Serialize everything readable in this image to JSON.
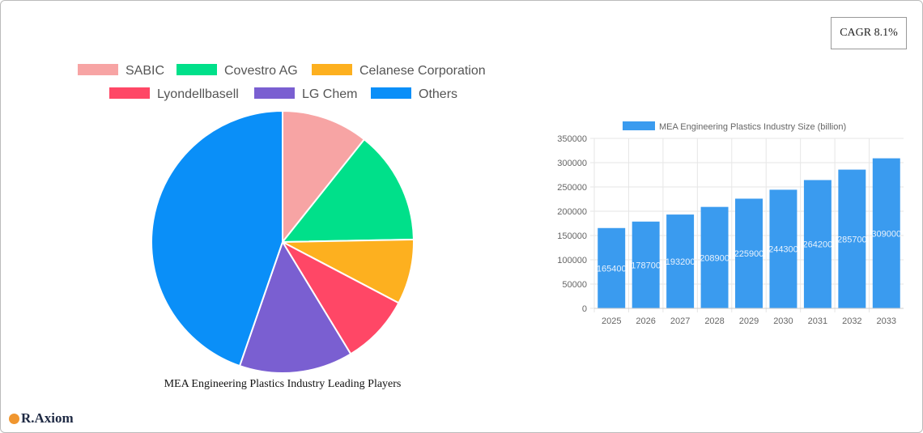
{
  "cagr_label": "CAGR 8.1%",
  "brand": "R.Axiom",
  "chart_data": [
    {
      "type": "pie",
      "title": "MEA Engineering Plastics Industry Leading Players",
      "legend_position": "top",
      "categories": [
        "SABIC",
        "Covestro AG",
        "Celanese Corporation",
        "Lyondellbasell",
        "LG Chem",
        "Others"
      ],
      "values": [
        10.7,
        14.0,
        8.0,
        8.6,
        14.0,
        44.7
      ],
      "colors": [
        "#f7a4a4",
        "#00e08a",
        "#fdb01f",
        "#ff4766",
        "#7a5fd1",
        "#0a8ff8"
      ]
    },
    {
      "type": "bar",
      "legend_position": "top",
      "series": [
        {
          "name": "MEA Engineering Plastics Industry Size (billion)",
          "color": "#3a9bef",
          "values": [
            165400,
            178700,
            193200,
            208900,
            225900,
            244300,
            264200,
            285700,
            309000
          ]
        }
      ],
      "categories": [
        "2025",
        "2026",
        "2027",
        "2028",
        "2029",
        "2030",
        "2031",
        "2032",
        "2033"
      ],
      "ylim": [
        0,
        350000
      ],
      "yticks": [
        0,
        50000,
        100000,
        150000,
        200000,
        250000,
        300000,
        350000
      ],
      "grid": true
    }
  ]
}
